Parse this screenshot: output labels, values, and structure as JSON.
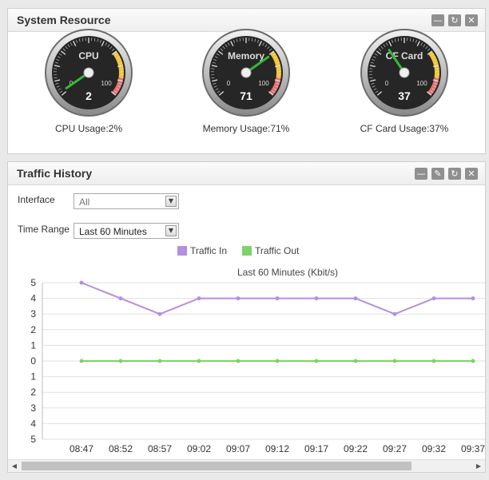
{
  "system_resource": {
    "title": "System Resource",
    "gauges": [
      {
        "name": "CPU",
        "value": 2,
        "label": "CPU Usage:2%"
      },
      {
        "name": "Memory",
        "value": 71,
        "label": "Memory Usage:71%"
      },
      {
        "name": "CF Card",
        "value": 37,
        "label": "CF Card Usage:37%"
      }
    ],
    "scale_min": "0",
    "scale_max": "100"
  },
  "traffic_history": {
    "title": "Traffic History",
    "interface_label": "Interface",
    "interface_value": "All",
    "time_range_label": "Time Range",
    "time_range_value": "Last 60 Minutes"
  },
  "icons": {
    "minimize": "minimize-icon",
    "refresh": "refresh-icon",
    "close": "close-icon",
    "edit": "edit-icon",
    "dropdown": "chevron-down-icon"
  },
  "colors": {
    "traffic_in": "#b48fde",
    "traffic_out": "#7dd36a"
  },
  "chart_data": {
    "type": "line",
    "title": "Last 60 Minutes (Kbit/s)",
    "categories": [
      "08:47",
      "08:52",
      "08:57",
      "09:02",
      "09:07",
      "09:12",
      "09:17",
      "09:22",
      "09:27",
      "09:32",
      "09:37"
    ],
    "y_tick_labels": [
      "5",
      "4",
      "3",
      "2",
      "1",
      "0",
      "1",
      "2",
      "3",
      "4",
      "5"
    ],
    "ylim": [
      -5,
      5
    ],
    "grid": true,
    "legend_position": "top",
    "series": [
      {
        "name": "Traffic In",
        "values": [
          5,
          4,
          3,
          4,
          4,
          4,
          4,
          4,
          3,
          4,
          4
        ]
      },
      {
        "name": "Traffic Out",
        "values": [
          0,
          0,
          0,
          0,
          0,
          0,
          0,
          0,
          0,
          0,
          0
        ]
      }
    ]
  }
}
